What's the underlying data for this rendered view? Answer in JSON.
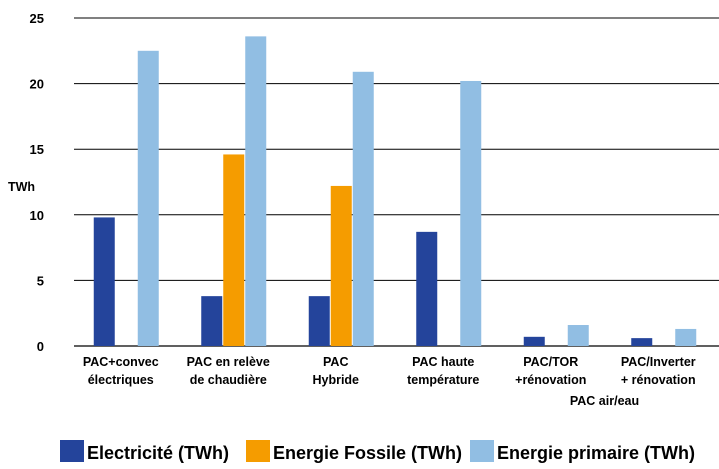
{
  "chart_data": {
    "type": "bar",
    "ylabel": "TWh",
    "ylim": [
      0,
      25
    ],
    "yticks": [
      0,
      5,
      10,
      15,
      20,
      25
    ],
    "grid": true,
    "legend_position": "bottom",
    "categories": [
      [
        "PAC+convec",
        "électriques"
      ],
      [
        "PAC en relève",
        "de chaudière"
      ],
      [
        "PAC",
        "Hybride"
      ],
      [
        "PAC haute",
        "température"
      ],
      [
        "PAC/TOR",
        "+rénovation"
      ],
      [
        "PAC/Inverter",
        "+ rénovation"
      ]
    ],
    "group_label": {
      "text": "PAC air/eau",
      "categories": [
        4,
        5
      ]
    },
    "series": [
      {
        "name": "Electricité (TWh)",
        "color": "#24449b",
        "values": [
          9.8,
          3.8,
          3.8,
          8.7,
          0.7,
          0.6
        ]
      },
      {
        "name": "Energie Fossile (TWh)",
        "color": "#f59c00",
        "values": [
          0,
          14.6,
          12.2,
          0,
          0,
          0
        ]
      },
      {
        "name": "Energie primaire (TWh)",
        "color": "#91bee3",
        "values": [
          22.5,
          23.6,
          20.9,
          20.2,
          1.6,
          1.3
        ]
      }
    ]
  }
}
